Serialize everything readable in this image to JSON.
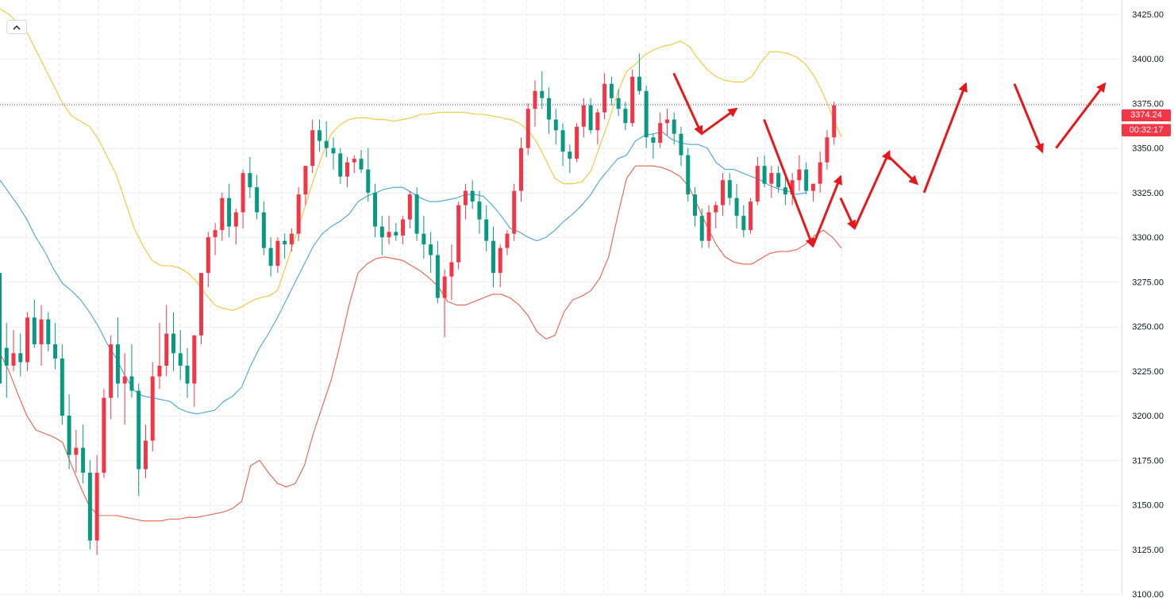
{
  "chart_data": {
    "type": "candlestick",
    "y_axis": {
      "ticks": [
        "3425.00",
        "3400.00",
        "3375.00",
        "3350.00",
        "3325.00",
        "3300.00",
        "3275.00",
        "3250.00",
        "3225.00",
        "3200.00",
        "3175.00",
        "3150.00",
        "3125.00",
        "3100.00"
      ],
      "range": [
        3100,
        3433
      ],
      "position": "right"
    },
    "grid": true,
    "last_price": {
      "label": "3374.24",
      "value": 3374.24,
      "color": "#f23645"
    },
    "countdown": "00:32:17",
    "colors": {
      "up": "#f23645",
      "down": "#089981",
      "upper_band": "#f2c531",
      "middle_band": "#4aa3d8",
      "lower_band": "#e8604c",
      "arrows": "#e5191b",
      "grid": "#eef0f3"
    },
    "candles": [
      [
        3280,
        3282,
        3215,
        3218
      ],
      [
        3238,
        3252,
        3210,
        3228
      ],
      [
        3228,
        3248,
        3225,
        3235
      ],
      [
        3235,
        3246,
        3222,
        3230
      ],
      [
        3230,
        3258,
        3225,
        3255
      ],
      [
        3255,
        3265,
        3238,
        3240
      ],
      [
        3240,
        3262,
        3228,
        3254
      ],
      [
        3254,
        3258,
        3236,
        3240
      ],
      [
        3240,
        3252,
        3226,
        3232
      ],
      [
        3232,
        3240,
        3195,
        3200
      ],
      [
        3200,
        3212,
        3170,
        3178
      ],
      [
        3178,
        3192,
        3168,
        3182
      ],
      [
        3182,
        3195,
        3162,
        3168
      ],
      [
        3168,
        3175,
        3125,
        3130
      ],
      [
        3130,
        3178,
        3122,
        3168
      ],
      [
        3168,
        3215,
        3165,
        3210
      ],
      [
        3210,
        3245,
        3198,
        3240
      ],
      [
        3240,
        3255,
        3210,
        3218
      ],
      [
        3218,
        3235,
        3195,
        3222
      ],
      [
        3222,
        3240,
        3210,
        3214
      ],
      [
        3214,
        3218,
        3155,
        3170
      ],
      [
        3170,
        3195,
        3165,
        3186
      ],
      [
        3186,
        3230,
        3180,
        3222
      ],
      [
        3222,
        3252,
        3215,
        3228
      ],
      [
        3228,
        3262,
        3222,
        3246
      ],
      [
        3246,
        3258,
        3225,
        3235
      ],
      [
        3235,
        3248,
        3220,
        3228
      ],
      [
        3228,
        3238,
        3210,
        3218
      ],
      [
        3218,
        3245,
        3205,
        3245
      ],
      [
        3245,
        3278,
        3240,
        3280
      ],
      [
        3280,
        3303,
        3272,
        3300
      ],
      [
        3300,
        3308,
        3290,
        3304
      ],
      [
        3304,
        3325,
        3298,
        3322
      ],
      [
        3322,
        3330,
        3300,
        3306
      ],
      [
        3306,
        3316,
        3296,
        3314
      ],
      [
        3314,
        3338,
        3305,
        3336
      ],
      [
        3336,
        3345,
        3322,
        3328
      ],
      [
        3328,
        3335,
        3310,
        3314
      ],
      [
        3314,
        3320,
        3290,
        3294
      ],
      [
        3294,
        3300,
        3278,
        3284
      ],
      [
        3284,
        3300,
        3280,
        3298
      ],
      [
        3298,
        3302,
        3288,
        3296
      ],
      [
        3296,
        3305,
        3292,
        3302
      ],
      [
        3302,
        3328,
        3298,
        3324
      ],
      [
        3324,
        3340,
        3318,
        3340
      ],
      [
        3340,
        3366,
        3336,
        3360
      ],
      [
        3360,
        3366,
        3348,
        3354
      ],
      [
        3354,
        3365,
        3345,
        3350
      ],
      [
        3350,
        3356,
        3338,
        3347
      ],
      [
        3347,
        3350,
        3330,
        3334
      ],
      [
        3334,
        3345,
        3328,
        3342
      ],
      [
        3342,
        3346,
        3336,
        3344
      ],
      [
        3344,
        3349,
        3336,
        3338
      ],
      [
        3338,
        3350,
        3320,
        3325
      ],
      [
        3325,
        3330,
        3300,
        3306
      ],
      [
        3306,
        3312,
        3290,
        3300
      ],
      [
        3300,
        3312,
        3296,
        3303
      ],
      [
        3303,
        3308,
        3298,
        3301
      ],
      [
        3301,
        3312,
        3296,
        3310
      ],
      [
        3310,
        3326,
        3305,
        3324
      ],
      [
        3324,
        3328,
        3298,
        3302
      ],
      [
        3302,
        3312,
        3288,
        3296
      ],
      [
        3296,
        3303,
        3280,
        3290
      ],
      [
        3290,
        3298,
        3263,
        3266
      ],
      [
        3266,
        3282,
        3244,
        3278
      ],
      [
        3278,
        3296,
        3265,
        3286
      ],
      [
        3286,
        3320,
        3282,
        3318
      ],
      [
        3318,
        3330,
        3310,
        3326
      ],
      [
        3326,
        3332,
        3316,
        3320
      ],
      [
        3320,
        3326,
        3302,
        3310
      ],
      [
        3310,
        3318,
        3292,
        3298
      ],
      [
        3298,
        3306,
        3272,
        3280
      ],
      [
        3280,
        3296,
        3272,
        3294
      ],
      [
        3294,
        3304,
        3290,
        3302
      ],
      [
        3302,
        3330,
        3298,
        3326
      ],
      [
        3326,
        3356,
        3320,
        3350
      ],
      [
        3350,
        3375,
        3346,
        3372
      ],
      [
        3372,
        3388,
        3362,
        3382
      ],
      [
        3382,
        3393,
        3372,
        3378
      ],
      [
        3378,
        3384,
        3358,
        3366
      ],
      [
        3366,
        3372,
        3352,
        3360
      ],
      [
        3360,
        3364,
        3340,
        3348
      ],
      [
        3348,
        3352,
        3336,
        3344
      ],
      [
        3344,
        3364,
        3342,
        3362
      ],
      [
        3362,
        3378,
        3356,
        3374
      ],
      [
        3374,
        3378,
        3358,
        3360
      ],
      [
        3360,
        3372,
        3352,
        3370
      ],
      [
        3370,
        3392,
        3366,
        3386
      ],
      [
        3386,
        3390,
        3374,
        3378
      ],
      [
        3378,
        3383,
        3368,
        3372
      ],
      [
        3372,
        3376,
        3360,
        3364
      ],
      [
        3364,
        3394,
        3362,
        3390
      ],
      [
        3390,
        3403,
        3380,
        3382
      ],
      [
        3382,
        3385,
        3350,
        3356
      ],
      [
        3356,
        3358,
        3344,
        3353
      ],
      [
        3353,
        3370,
        3350,
        3364
      ],
      [
        3364,
        3372,
        3357,
        3366
      ],
      [
        3366,
        3370,
        3352,
        3358
      ],
      [
        3358,
        3362,
        3340,
        3346
      ],
      [
        3346,
        3350,
        3320,
        3324
      ],
      [
        3324,
        3328,
        3306,
        3312
      ],
      [
        3312,
        3316,
        3294,
        3298
      ],
      [
        3298,
        3318,
        3294,
        3314
      ],
      [
        3314,
        3320,
        3305,
        3318
      ],
      [
        3318,
        3336,
        3312,
        3332
      ],
      [
        3332,
        3336,
        3318,
        3322
      ],
      [
        3322,
        3330,
        3305,
        3312
      ],
      [
        3312,
        3318,
        3300,
        3304
      ],
      [
        3304,
        3322,
        3302,
        3320
      ],
      [
        3320,
        3345,
        3318,
        3340
      ],
      [
        3340,
        3346,
        3328,
        3330
      ],
      [
        3330,
        3340,
        3322,
        3336
      ],
      [
        3336,
        3340,
        3325,
        3328
      ],
      [
        3328,
        3334,
        3318,
        3324
      ],
      [
        3324,
        3336,
        3318,
        3332
      ],
      [
        3332,
        3346,
        3326,
        3338
      ],
      [
        3338,
        3342,
        3324,
        3326
      ],
      [
        3326,
        3330,
        3320,
        3330
      ],
      [
        3330,
        3348,
        3325,
        3342
      ],
      [
        3342,
        3360,
        3338,
        3356
      ],
      [
        3356,
        3376,
        3352,
        3374
      ]
    ],
    "bands": {
      "upper": [
        3428,
        3425,
        3420,
        3415,
        3405,
        3395,
        3385,
        3375,
        3368,
        3365,
        3362,
        3355,
        3345,
        3335,
        3320,
        3305,
        3295,
        3287,
        3284,
        3284,
        3283,
        3280,
        3275,
        3268,
        3262,
        3260,
        3259,
        3261,
        3264,
        3266,
        3267,
        3270,
        3285,
        3300,
        3316,
        3332,
        3346,
        3358,
        3363,
        3366,
        3367,
        3367,
        3366,
        3366,
        3365,
        3366,
        3367,
        3369,
        3369,
        3370,
        3370,
        3370,
        3370,
        3369,
        3369,
        3368,
        3367,
        3366,
        3364,
        3360,
        3353,
        3343,
        3333,
        3330,
        3330,
        3331,
        3337,
        3351,
        3365,
        3381,
        3393,
        3397,
        3402,
        3405,
        3407,
        3408,
        3410,
        3407,
        3400,
        3394,
        3390,
        3388,
        3387,
        3387,
        3390,
        3398,
        3404,
        3404,
        3403,
        3401,
        3397,
        3390,
        3380,
        3368,
        3356
      ],
      "middle": [
        3332,
        3325,
        3318,
        3310,
        3300,
        3292,
        3282,
        3274,
        3270,
        3265,
        3258,
        3250,
        3240,
        3232,
        3222,
        3214,
        3211,
        3210,
        3209,
        3208,
        3204,
        3202,
        3201,
        3202,
        3203,
        3208,
        3211,
        3216,
        3228,
        3238,
        3246,
        3255,
        3265,
        3275,
        3285,
        3295,
        3302,
        3306,
        3309,
        3313,
        3320,
        3323,
        3325,
        3327,
        3328,
        3328,
        3325,
        3322,
        3320,
        3320,
        3321,
        3322,
        3324,
        3324,
        3323,
        3318,
        3312,
        3305,
        3303,
        3300,
        3298,
        3300,
        3304,
        3309,
        3313,
        3318,
        3324,
        3332,
        3338,
        3344,
        3346,
        3354,
        3357,
        3358,
        3359,
        3355,
        3353,
        3352,
        3352,
        3350,
        3342,
        3338,
        3338,
        3336,
        3334,
        3332,
        3329,
        3327,
        3326,
        3324,
        3325
      ],
      "lower": [
        3235,
        3225,
        3212,
        3200,
        3192,
        3190,
        3188,
        3185,
        3172,
        3160,
        3149,
        3144,
        3144,
        3144,
        3143,
        3142,
        3141,
        3141,
        3141,
        3142,
        3142,
        3143,
        3143,
        3144,
        3145,
        3146,
        3148,
        3152,
        3172,
        3175,
        3168,
        3162,
        3160,
        3162,
        3172,
        3190,
        3205,
        3220,
        3240,
        3262,
        3280,
        3285,
        3288,
        3289,
        3288,
        3287,
        3284,
        3281,
        3277,
        3272,
        3264,
        3262,
        3262,
        3264,
        3266,
        3268,
        3268,
        3266,
        3262,
        3256,
        3247,
        3243,
        3245,
        3258,
        3265,
        3267,
        3270,
        3277,
        3289,
        3312,
        3333,
        3340,
        3340,
        3340,
        3339,
        3337,
        3334,
        3328,
        3317,
        3306,
        3296,
        3289,
        3286,
        3285,
        3285,
        3288,
        3291,
        3292,
        3292,
        3293,
        3296,
        3301,
        3304,
        3300,
        3294
      ]
    },
    "arrows": [
      [
        [
          3392,
          97
        ],
        [
          3358,
          101
        ]
      ],
      [
        [
          3358,
          101
        ],
        [
          3372,
          106
        ]
      ],
      [
        [
          3366,
          110
        ],
        [
          3295,
          117
        ]
      ],
      [
        [
          3295,
          117
        ],
        [
          3334,
          121
        ]
      ],
      [
        [
          3322,
          121
        ],
        [
          3305,
          123
        ]
      ],
      [
        [
          3305,
          123
        ],
        [
          3348,
          128
        ]
      ],
      [
        [
          3345,
          128
        ],
        [
          3330,
          132
        ]
      ],
      [
        [
          3325,
          133
        ],
        [
          3386,
          139
        ]
      ],
      [
        [
          3386,
          146
        ],
        [
          3348,
          150
        ]
      ],
      [
        [
          3350,
          152
        ],
        [
          3386,
          159
        ]
      ]
    ]
  }
}
